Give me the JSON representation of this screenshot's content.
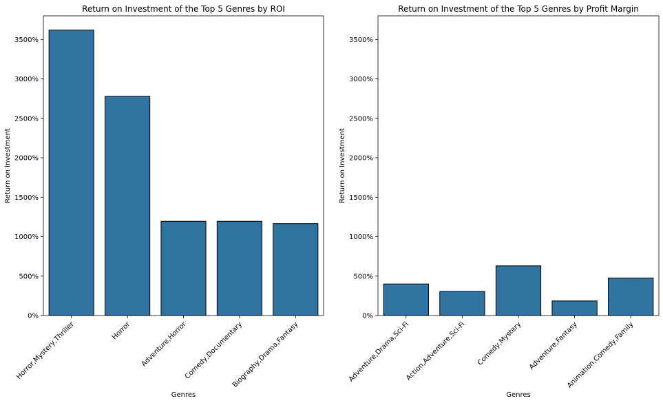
{
  "chart_data": [
    {
      "type": "bar",
      "title": "Return on Investment of the Top 5 Genres by ROI",
      "xlabel": "Genres",
      "ylabel": "Return on Investment",
      "categories": [
        "Horror,Mystery,Thriller",
        "Horror",
        "Adventure,Horror",
        "Comedy,Documentary",
        "Biography,Drama,Fantasy"
      ],
      "values": [
        3620,
        2780,
        1195,
        1195,
        1165
      ],
      "ylim": [
        0,
        3800
      ],
      "yticks": [
        0,
        500,
        1000,
        1500,
        2000,
        2500,
        3000,
        3500
      ],
      "ytick_labels": [
        "0%",
        "500%",
        "1000%",
        "1500%",
        "2000%",
        "2500%",
        "3000%",
        "3500%"
      ],
      "bar_color": "#3274a1",
      "edge_color": "#000000"
    },
    {
      "type": "bar",
      "title": "Return on Investment of the Top 5 Genres by Profit Margin",
      "xlabel": "Genres",
      "ylabel": "Return on Investment",
      "categories": [
        "Adventure,Drama,Sci-Fi",
        "Action,Adventure,Sci-Fi",
        "Comedy,Mystery",
        "Adventure,Fantasy",
        "Animation,Comedy,Family"
      ],
      "values": [
        400,
        305,
        630,
        185,
        475
      ],
      "ylim": [
        0,
        3800
      ],
      "yticks": [
        0,
        500,
        1000,
        1500,
        2000,
        2500,
        3000,
        3500
      ],
      "ytick_labels": [
        "0%",
        "500%",
        "1000%",
        "1500%",
        "2000%",
        "2500%",
        "3000%",
        "3500%"
      ],
      "bar_color": "#3274a1",
      "edge_color": "#000000"
    }
  ]
}
